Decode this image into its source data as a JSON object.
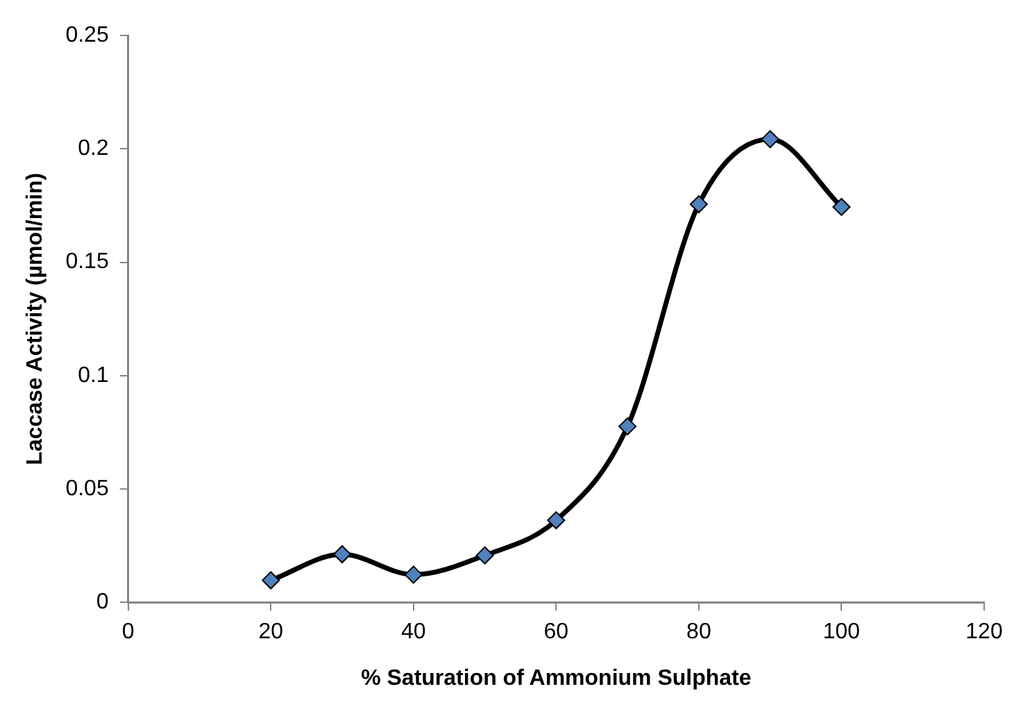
{
  "chart_data": {
    "type": "line",
    "xlabel": "% Saturation of Ammonium Sulphate",
    "ylabel": "Laccase Activity (µmol/min)",
    "x": [
      20,
      30,
      40,
      50,
      60,
      70,
      80,
      90,
      100
    ],
    "series": [
      {
        "color": "#4f81bd",
        "values": [
          0.0097,
          0.0212,
          0.0122,
          0.0207,
          0.0362,
          0.0776,
          0.1756,
          0.2043,
          0.1744
        ]
      }
    ],
    "xlim": [
      0,
      120
    ],
    "xticks": [
      0,
      20,
      40,
      60,
      80,
      100,
      120
    ],
    "ylim": [
      0,
      0.25
    ],
    "yticks": [
      0,
      0.05,
      0.1,
      0.15,
      0.2,
      0.25
    ],
    "grid": false,
    "legend": false,
    "marker": "diamond",
    "line_style": "solid"
  }
}
